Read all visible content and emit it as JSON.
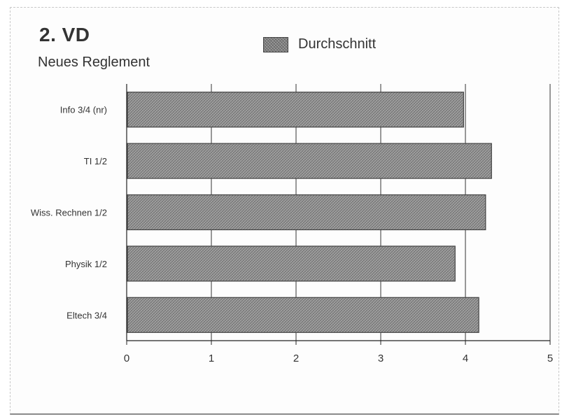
{
  "header": {
    "title": "2. VD",
    "subtitle": "Neues Reglement"
  },
  "legend": {
    "label": "Durchschnitt"
  },
  "colors": {
    "bar_fill": "#9a9a9a",
    "bar_stroke": "#444444",
    "grid": "#333333"
  },
  "chart_data": {
    "type": "bar",
    "orientation": "horizontal",
    "title": "2. VD",
    "subtitle": "Neues Reglement",
    "categories": [
      "Info 3/4 (nr)",
      "TI 1/2",
      "Wiss. Rechnen 1/2",
      "Physik 1/2",
      "Eltech 3/4"
    ],
    "series": [
      {
        "name": "Durchschnitt",
        "values": [
          3.97,
          4.3,
          4.23,
          3.87,
          4.15
        ]
      }
    ],
    "xlabel": "",
    "ylabel": "",
    "xlim": [
      0,
      5
    ],
    "x_ticks": [
      "0",
      "1",
      "2",
      "3",
      "4",
      "5"
    ],
    "grid": true,
    "legend_position": "top"
  }
}
